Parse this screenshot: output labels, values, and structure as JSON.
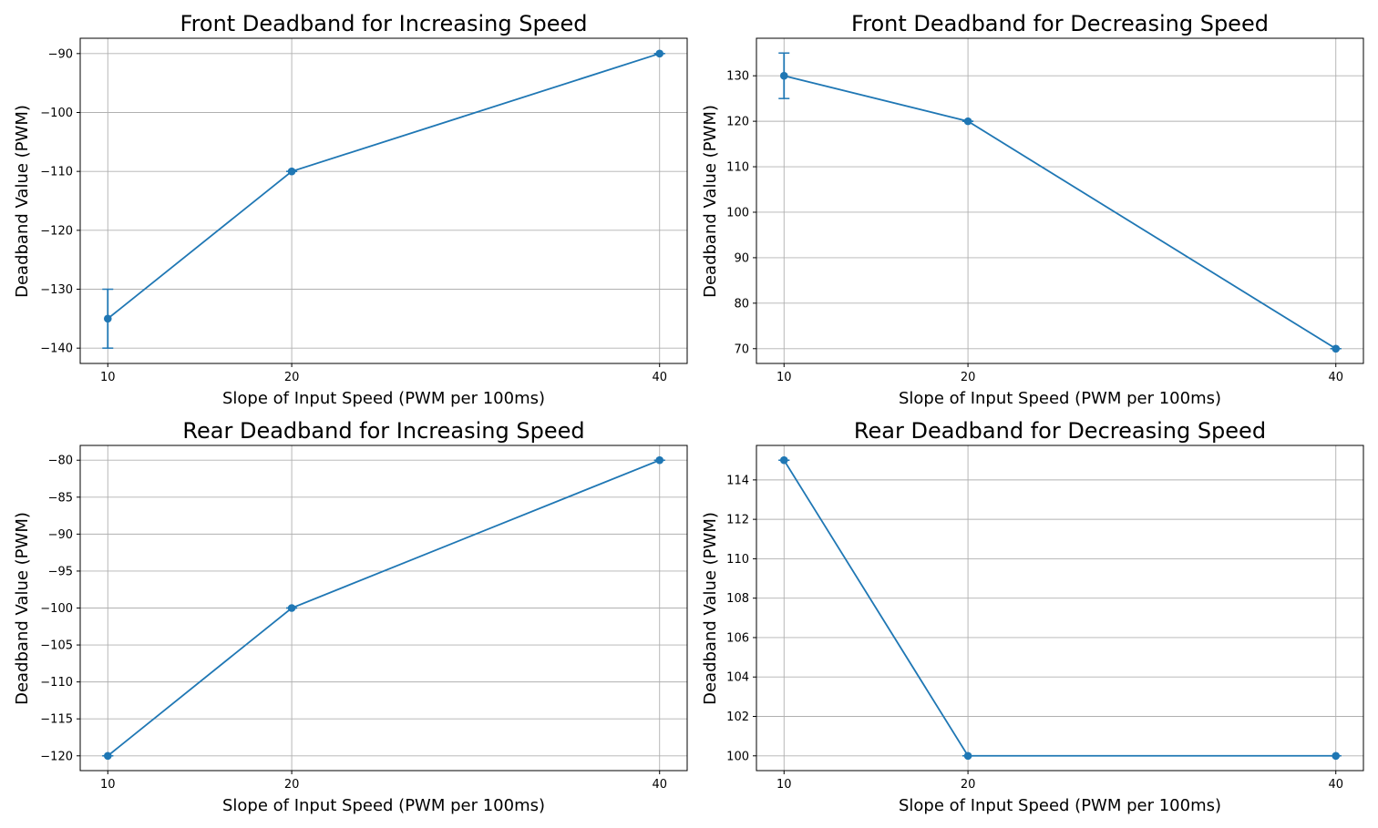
{
  "chart_data": [
    {
      "type": "line",
      "title": "Front Deadband for Increasing Speed",
      "xlabel": "Slope of Input Speed (PWM per 100ms)",
      "ylabel": "Deadband Value (PWM)",
      "x": [
        10,
        20,
        40
      ],
      "x_ticks": [
        10,
        20,
        40
      ],
      "xlim": [
        8.5,
        41.5
      ],
      "y_ticks": [
        -140,
        -130,
        -120,
        -110,
        -100,
        -90
      ],
      "ylim": [
        -142.6,
        -87.4
      ],
      "grid": true,
      "color": "#1f77b4",
      "series": [
        {
          "values": [
            -135,
            -110,
            -90
          ],
          "error": [
            5,
            0,
            0
          ]
        }
      ]
    },
    {
      "type": "line",
      "title": "Front Deadband for Decreasing Speed",
      "xlabel": "Slope of Input Speed (PWM per 100ms)",
      "ylabel": "Deadband Value (PWM)",
      "x": [
        10,
        20,
        40
      ],
      "x_ticks": [
        10,
        20,
        40
      ],
      "xlim": [
        8.5,
        41.5
      ],
      "y_ticks": [
        70,
        80,
        90,
        100,
        110,
        120,
        130
      ],
      "ylim": [
        66.75,
        138.25
      ],
      "grid": true,
      "color": "#1f77b4",
      "series": [
        {
          "values": [
            130,
            120,
            70
          ],
          "error": [
            5,
            0,
            0
          ]
        }
      ]
    },
    {
      "type": "line",
      "title": "Rear Deadband for Increasing Speed",
      "xlabel": "Slope of Input Speed (PWM per 100ms)",
      "ylabel": "Deadband Value (PWM)",
      "x": [
        10,
        20,
        40
      ],
      "x_ticks": [
        10,
        20,
        40
      ],
      "xlim": [
        8.5,
        41.5
      ],
      "y_ticks": [
        -120,
        -115,
        -110,
        -105,
        -100,
        -95,
        -90,
        -85,
        -80
      ],
      "ylim": [
        -122,
        -78
      ],
      "grid": true,
      "color": "#1f77b4",
      "series": [
        {
          "values": [
            -120,
            -100,
            -80
          ],
          "error": [
            0,
            0,
            0
          ]
        }
      ]
    },
    {
      "type": "line",
      "title": "Rear Deadband for Decreasing Speed",
      "xlabel": "Slope of Input Speed (PWM per 100ms)",
      "ylabel": "Deadband Value (PWM)",
      "x": [
        10,
        20,
        40
      ],
      "x_ticks": [
        10,
        20,
        40
      ],
      "xlim": [
        8.5,
        41.5
      ],
      "y_ticks": [
        100,
        102,
        104,
        106,
        108,
        110,
        112,
        114
      ],
      "ylim": [
        99.25,
        115.75
      ],
      "grid": true,
      "color": "#1f77b4",
      "series": [
        {
          "values": [
            115,
            100,
            100
          ],
          "error": [
            0,
            0,
            0
          ]
        }
      ]
    }
  ]
}
